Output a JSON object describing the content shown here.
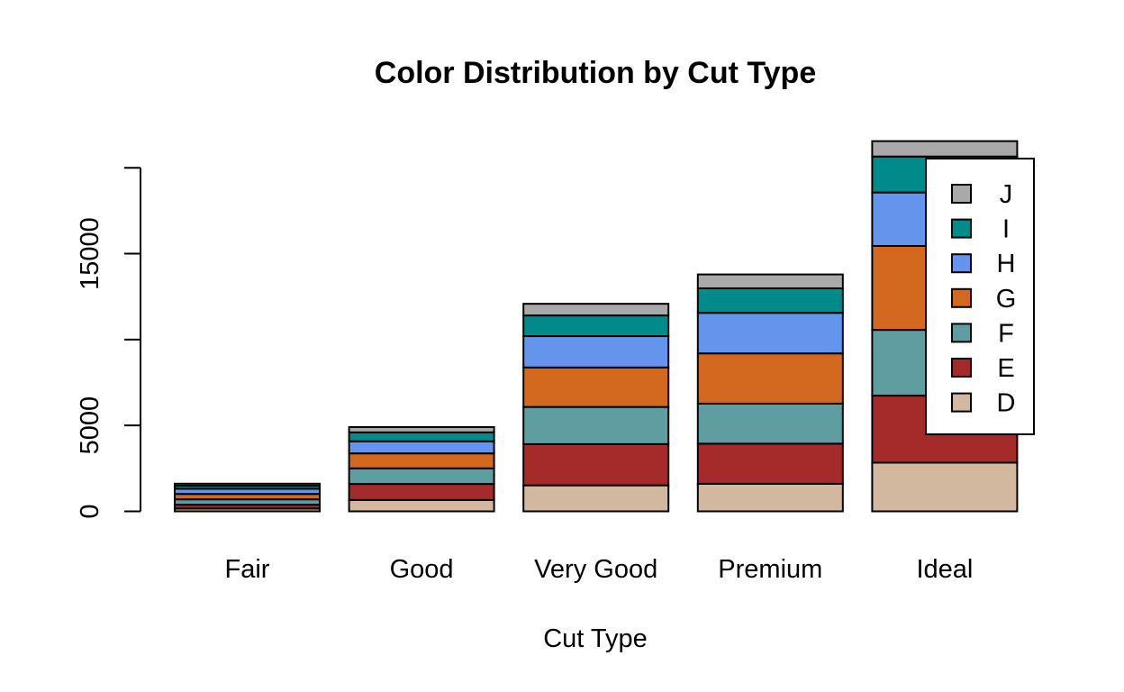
{
  "chart_data": {
    "type": "bar",
    "stacked": true,
    "title": "Color Distribution by Cut Type",
    "xlabel": "Cut Type",
    "ylabel": "",
    "ylim": [
      0,
      20500
    ],
    "yticks": [
      0,
      5000,
      10000,
      15000,
      20000
    ],
    "ytick_labels": [
      "0",
      "5000",
      "",
      "15000",
      ""
    ],
    "categories": [
      "Fair",
      "Good",
      "Very Good",
      "Premium",
      "Ideal"
    ],
    "series": [
      {
        "name": "D",
        "color": "#D2B89E",
        "values": [
          163,
          662,
          1513,
          1603,
          2834
        ]
      },
      {
        "name": "E",
        "color": "#A52A2A",
        "values": [
          224,
          933,
          2400,
          2337,
          3903
        ]
      },
      {
        "name": "F",
        "color": "#5F9EA0",
        "values": [
          312,
          909,
          2164,
          2331,
          3826
        ]
      },
      {
        "name": "G",
        "color": "#D2691E",
        "values": [
          314,
          871,
          2299,
          2924,
          4884
        ]
      },
      {
        "name": "H",
        "color": "#6495ED",
        "values": [
          303,
          702,
          1824,
          2360,
          3115
        ]
      },
      {
        "name": "I",
        "color": "#008B8B",
        "values": [
          175,
          522,
          1204,
          1428,
          2093
        ]
      },
      {
        "name": "J",
        "color": "#A9A9A9",
        "values": [
          119,
          307,
          678,
          808,
          896
        ]
      }
    ],
    "legend_position": "top-right",
    "grid": false
  }
}
